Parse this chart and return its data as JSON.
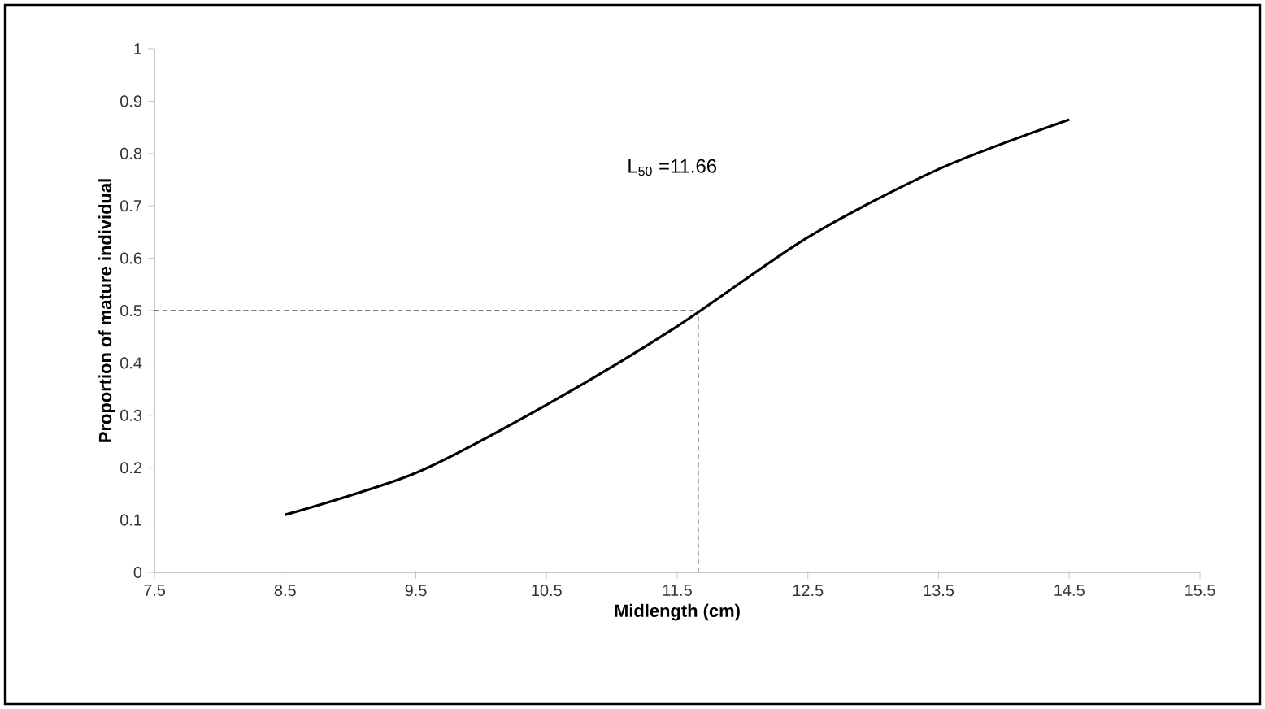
{
  "chart_data": {
    "type": "line",
    "xlabel": "Midlength (cm)",
    "ylabel": "Proportion of mature individual",
    "x": [
      8.5,
      9.5,
      10.5,
      11.5,
      12.5,
      13.5,
      14.5
    ],
    "series": [
      {
        "color": "#000000",
        "values": [
          0.11,
          0.19,
          0.32,
          0.47,
          0.64,
          0.77,
          0.865
        ]
      }
    ],
    "xlim": [
      7.5,
      15.5
    ],
    "xticks": [
      7.5,
      8.5,
      9.5,
      10.5,
      11.5,
      12.5,
      13.5,
      14.5,
      15.5
    ],
    "ylim": [
      0,
      1
    ],
    "yticks": [
      0,
      0.1,
      0.2,
      0.3,
      0.4,
      0.5,
      0.6,
      0.7,
      0.8,
      0.9,
      1
    ],
    "ref_lines": [
      {
        "axis": "x",
        "value": 11.66,
        "color": "#000000",
        "line_style": "dashed"
      },
      {
        "axis": "y",
        "value": 0.5,
        "color": "#000000",
        "line_style": "dashed"
      }
    ],
    "annotations": [
      "L$_{50}$ =11.66"
    ],
    "grid": false,
    "marker": "none",
    "line_style": "solid"
  }
}
